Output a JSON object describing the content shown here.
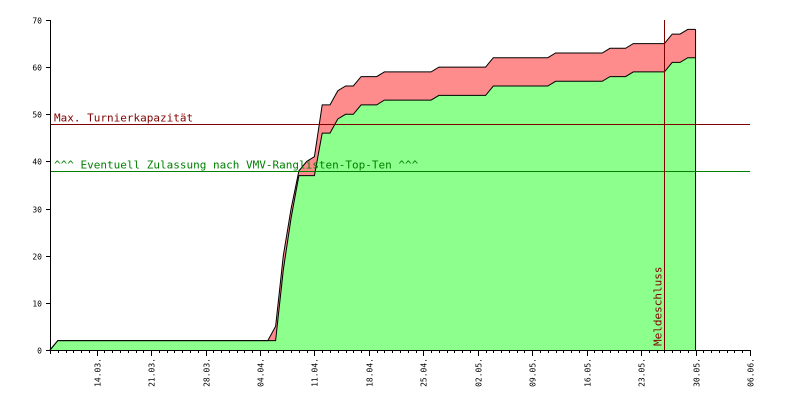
{
  "chart_data": {
    "type": "area",
    "title": "",
    "xlabel": "",
    "ylabel": "",
    "ylim": [
      0,
      70
    ],
    "yticks": [
      0,
      10,
      20,
      30,
      40,
      50,
      60,
      70
    ],
    "xlim": [
      "2011-03-08",
      "2011-06-06"
    ],
    "x_tick_labels": [
      "14.03.",
      "21.03.",
      "28.03.",
      "04.04.",
      "11.04.",
      "18.04.",
      "25.04.",
      "02.05.",
      "09.05.",
      "16.05.",
      "23.05.",
      "30.05.",
      "06.06."
    ],
    "x_tick_dates": [
      "2011-03-14",
      "2011-03-21",
      "2011-03-28",
      "2011-04-04",
      "2011-04-11",
      "2011-04-18",
      "2011-04-25",
      "2011-05-02",
      "2011-05-09",
      "2011-05-16",
      "2011-05-23",
      "2011-05-30",
      "2011-06-06"
    ],
    "grid": false,
    "colors": {
      "lower_fill": "#8cff8c",
      "upper_fill": "#ff8c8c",
      "capacity_line": "#800000",
      "ranking_line": "#008000",
      "deadline_line": "#800000",
      "outline": "#000000"
    },
    "series": [
      {
        "values": [
          {
            "x": "2011-03-08",
            "y": 0
          },
          {
            "x": "2011-03-09",
            "y": 2
          },
          {
            "x": "2011-04-05",
            "y": 2
          },
          {
            "x": "2011-04-06",
            "y": 5
          },
          {
            "x": "2011-04-07",
            "y": 20
          },
          {
            "x": "2011-04-08",
            "y": 30
          },
          {
            "x": "2011-04-09",
            "y": 38
          },
          {
            "x": "2011-04-10",
            "y": 40
          },
          {
            "x": "2011-04-11",
            "y": 41
          },
          {
            "x": "2011-04-12",
            "y": 52
          },
          {
            "x": "2011-04-13",
            "y": 52
          },
          {
            "x": "2011-04-14",
            "y": 55
          },
          {
            "x": "2011-04-15",
            "y": 56
          },
          {
            "x": "2011-04-16",
            "y": 56
          },
          {
            "x": "2011-04-17",
            "y": 58
          },
          {
            "x": "2011-04-19",
            "y": 58
          },
          {
            "x": "2011-04-20",
            "y": 59
          },
          {
            "x": "2011-04-26",
            "y": 59
          },
          {
            "x": "2011-04-27",
            "y": 60
          },
          {
            "x": "2011-05-03",
            "y": 60
          },
          {
            "x": "2011-05-04",
            "y": 62
          },
          {
            "x": "2011-05-11",
            "y": 62
          },
          {
            "x": "2011-05-12",
            "y": 63
          },
          {
            "x": "2011-05-18",
            "y": 63
          },
          {
            "x": "2011-05-19",
            "y": 64
          },
          {
            "x": "2011-05-21",
            "y": 64
          },
          {
            "x": "2011-05-22",
            "y": 65
          },
          {
            "x": "2011-05-26",
            "y": 65
          },
          {
            "x": "2011-05-27",
            "y": 67
          },
          {
            "x": "2011-05-28",
            "y": 67
          },
          {
            "x": "2011-05-29",
            "y": 68
          },
          {
            "x": "2011-05-30",
            "y": 68
          }
        ]
      },
      {
        "values": [
          {
            "x": "2011-03-08",
            "y": 0
          },
          {
            "x": "2011-03-09",
            "y": 2
          },
          {
            "x": "2011-04-06",
            "y": 2
          },
          {
            "x": "2011-04-07",
            "y": 17
          },
          {
            "x": "2011-04-08",
            "y": 28
          },
          {
            "x": "2011-04-09",
            "y": 37
          },
          {
            "x": "2011-04-11",
            "y": 37
          },
          {
            "x": "2011-04-12",
            "y": 46
          },
          {
            "x": "2011-04-13",
            "y": 46
          },
          {
            "x": "2011-04-14",
            "y": 49
          },
          {
            "x": "2011-04-15",
            "y": 50
          },
          {
            "x": "2011-04-16",
            "y": 50
          },
          {
            "x": "2011-04-17",
            "y": 52
          },
          {
            "x": "2011-04-19",
            "y": 52
          },
          {
            "x": "2011-04-20",
            "y": 53
          },
          {
            "x": "2011-04-26",
            "y": 53
          },
          {
            "x": "2011-04-27",
            "y": 54
          },
          {
            "x": "2011-05-03",
            "y": 54
          },
          {
            "x": "2011-05-04",
            "y": 56
          },
          {
            "x": "2011-05-11",
            "y": 56
          },
          {
            "x": "2011-05-12",
            "y": 57
          },
          {
            "x": "2011-05-18",
            "y": 57
          },
          {
            "x": "2011-05-19",
            "y": 58
          },
          {
            "x": "2011-05-21",
            "y": 58
          },
          {
            "x": "2011-05-22",
            "y": 59
          },
          {
            "x": "2011-05-26",
            "y": 59
          },
          {
            "x": "2011-05-27",
            "y": 61
          },
          {
            "x": "2011-05-28",
            "y": 61
          },
          {
            "x": "2011-05-29",
            "y": 62
          },
          {
            "x": "2011-05-30",
            "y": 62
          }
        ]
      }
    ],
    "end_date": "2011-05-30",
    "annotations": [
      {
        "type": "hline",
        "y": 48,
        "color": "#800000",
        "label": "Max. Turnierkapazität"
      },
      {
        "type": "hline",
        "y": 38,
        "color": "#008000",
        "label": "^^^ Eventuell Zulassung nach VMV-Ranglisten-Top-Ten ^^^"
      },
      {
        "type": "vline",
        "x": "2011-05-26",
        "color": "#800000",
        "label": "Meldeschluss"
      }
    ]
  }
}
